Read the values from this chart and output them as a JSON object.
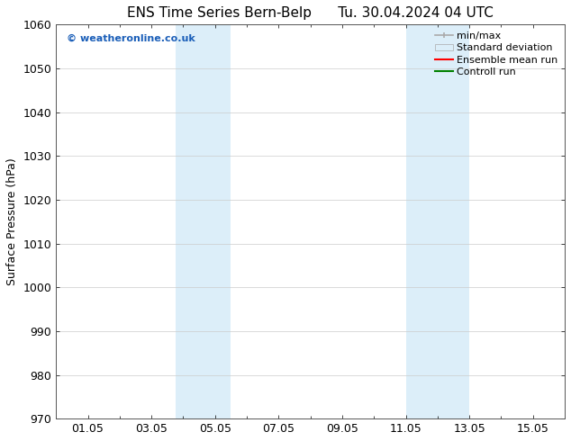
{
  "title_left": "ENS Time Series Bern-Belp",
  "title_right": "Tu. 30.04.2024 04 UTC",
  "ylabel": "Surface Pressure (hPa)",
  "ylim": [
    970,
    1060
  ],
  "yticks": [
    970,
    980,
    990,
    1000,
    1010,
    1020,
    1030,
    1040,
    1050,
    1060
  ],
  "xtick_labels": [
    "01.05",
    "03.05",
    "05.05",
    "07.05",
    "09.05",
    "11.05",
    "13.05",
    "15.05"
  ],
  "xtick_positions": [
    1,
    3,
    5,
    7,
    9,
    11,
    13,
    15
  ],
  "xlim": [
    0,
    16
  ],
  "shaded_bands": [
    {
      "xstart": 3.75,
      "xend": 5.5
    },
    {
      "xstart": 11.0,
      "xend": 13.0
    }
  ],
  "shaded_color": "#dceef9",
  "watermark_text": "© weatheronline.co.uk",
  "watermark_color": "#1a5eb8",
  "legend_labels": [
    "min/max",
    "Standard deviation",
    "Ensemble mean run",
    "Controll run"
  ],
  "legend_colors": [
    "#aaaaaa",
    "#dceef9",
    "red",
    "green"
  ],
  "bg_color": "#ffffff",
  "grid_color": "#cccccc",
  "title_fontsize": 11,
  "label_fontsize": 9,
  "tick_fontsize": 9,
  "legend_fontsize": 8
}
